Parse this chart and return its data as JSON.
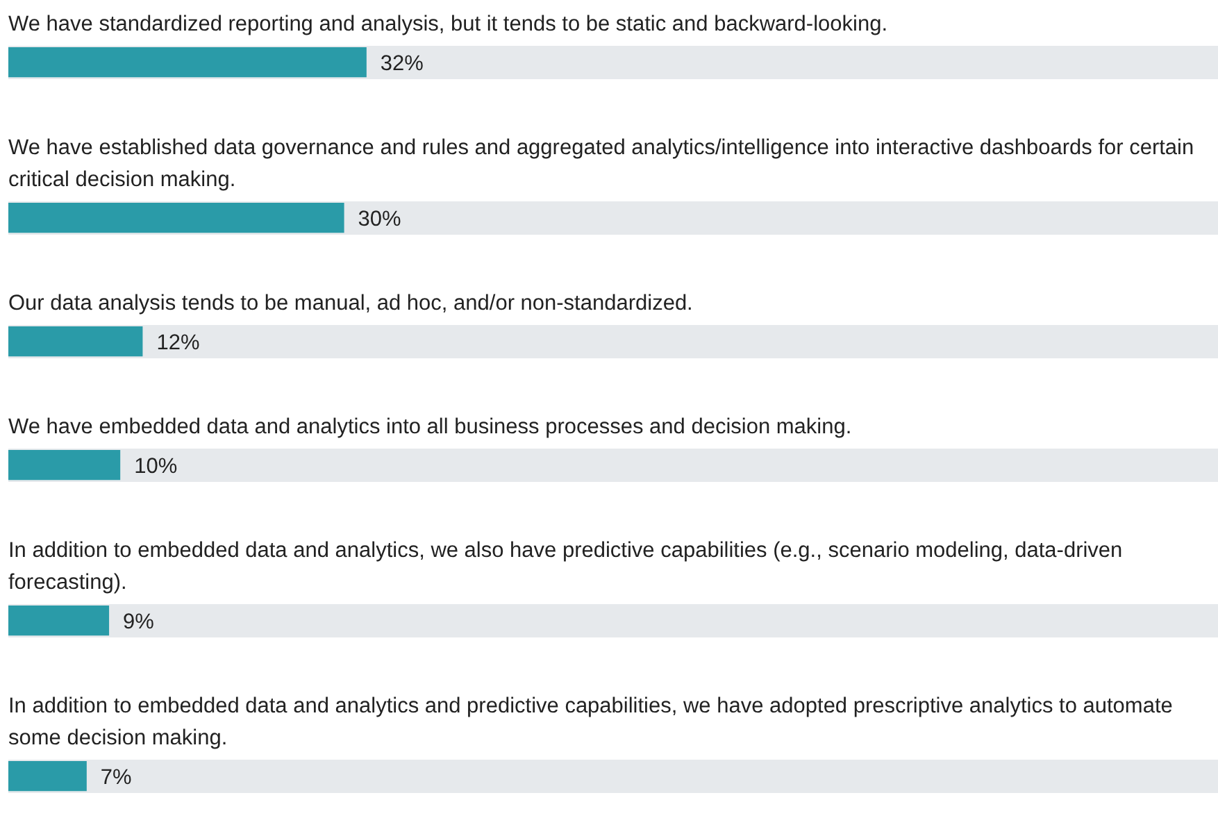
{
  "chart_data": {
    "type": "bar",
    "orientation": "horizontal",
    "categories": [
      "We have standardized reporting and analysis, but it tends to be static and backward-looking.",
      "We have established data governance and rules and aggregated analytics/intelligence into interactive dashboards for certain critical decision making.",
      "Our data analysis tends to be manual, ad hoc, and/or non-standardized.",
      "We have embedded data and analytics into all business processes and decision making.",
      "In addition to embedded data and analytics, we also have predictive capabilities (e.g., scenario modeling, data-driven forecasting).",
      "In addition to embedded data and analytics and predictive capabilities, we have adopted prescriptive analytics to automate some decision making."
    ],
    "values": [
      32,
      30,
      12,
      10,
      9,
      7
    ],
    "value_labels": [
      "32%",
      "30%",
      "12%",
      "10%",
      "9%",
      "7%"
    ],
    "color": "#2a9ba8"
  }
}
